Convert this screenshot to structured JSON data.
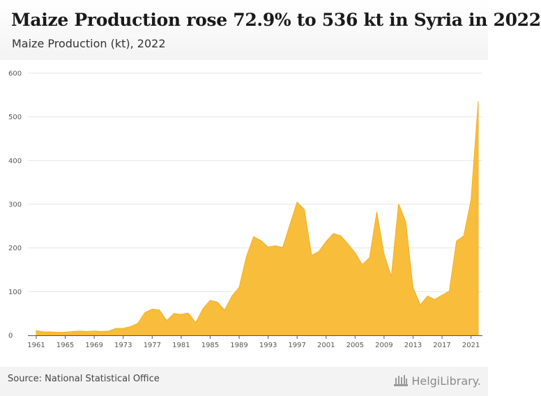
{
  "header": {
    "title": "Maize Production rose 72.9% to 536 kt in Syria in 2022",
    "subtitle": "Maize Production (kt), 2022"
  },
  "footer": {
    "source": "Source: National Statistical Office",
    "brand": "HelgiLibrary."
  },
  "colors": {
    "area_fill": "#f8bd3a",
    "area_stroke": "#f2b124",
    "grid": "#e6e6e6",
    "axis": "#555555"
  },
  "chart_data": {
    "type": "area",
    "title": "Maize Production (kt), 2022",
    "xlabel": "",
    "ylabel": "",
    "ylim": [
      0,
      600
    ],
    "yticks": [
      0,
      100,
      200,
      300,
      400,
      500,
      600
    ],
    "xticks": [
      1961,
      1965,
      1969,
      1973,
      1977,
      1981,
      1985,
      1989,
      1993,
      1997,
      2001,
      2005,
      2009,
      2013,
      2017,
      2021
    ],
    "xlim": [
      1961,
      2022
    ],
    "grid": true,
    "x": [
      1961,
      1962,
      1963,
      1964,
      1965,
      1966,
      1967,
      1968,
      1969,
      1970,
      1971,
      1972,
      1973,
      1974,
      1975,
      1976,
      1977,
      1978,
      1979,
      1980,
      1981,
      1982,
      1983,
      1984,
      1985,
      1986,
      1987,
      1988,
      1989,
      1990,
      1991,
      1992,
      1993,
      1994,
      1995,
      1996,
      1997,
      1998,
      1999,
      2000,
      2001,
      2002,
      2003,
      2004,
      2005,
      2006,
      2007,
      2008,
      2009,
      2010,
      2011,
      2012,
      2013,
      2014,
      2015,
      2016,
      2017,
      2018,
      2019,
      2020,
      2021,
      2022
    ],
    "values": [
      11,
      8,
      8,
      7,
      7,
      9,
      10,
      9,
      10,
      9,
      10,
      16,
      16,
      20,
      27,
      52,
      60,
      58,
      34,
      50,
      48,
      51,
      29,
      61,
      80,
      76,
      58,
      90,
      110,
      180,
      226,
      217,
      202,
      205,
      201,
      253,
      305,
      288,
      183,
      192,
      215,
      233,
      228,
      210,
      189,
      162,
      178,
      283,
      186,
      135,
      301,
      260,
      109,
      70,
      90,
      82,
      92,
      101,
      216,
      228,
      310,
      536
    ]
  }
}
